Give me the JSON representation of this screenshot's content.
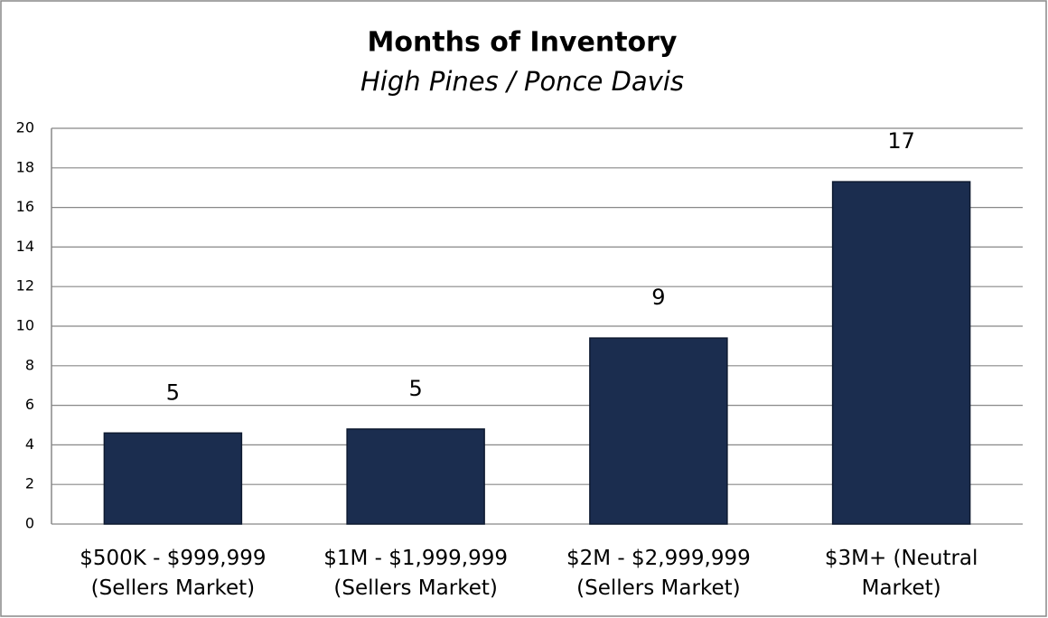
{
  "chart_data": {
    "type": "bar",
    "title": "Months of Inventory",
    "subtitle": "High Pines / Ponce Davis",
    "categories": [
      "$500K - $999,999\n(Sellers Market)",
      "$1M - $1,999,999\n(Sellers Market)",
      "$2M - $2,999,999\n(Sellers Market)",
      "$3M+ (Neutral\nMarket)"
    ],
    "values": [
      4.6,
      4.8,
      9.4,
      17.3
    ],
    "value_labels": [
      "5",
      "5",
      "9",
      "17"
    ],
    "color": "#1b2d4f",
    "ylim": [
      0,
      20
    ],
    "yticks": [
      0,
      2,
      4,
      6,
      8,
      10,
      12,
      14,
      16,
      18,
      20
    ],
    "grid": true
  }
}
